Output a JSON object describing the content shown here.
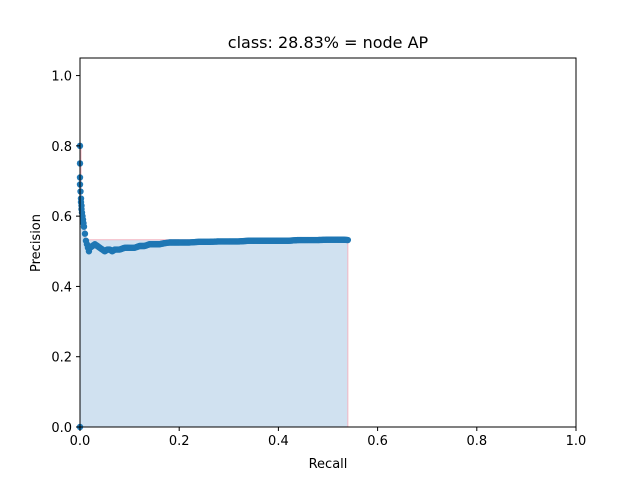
{
  "chart_data": {
    "type": "scatter",
    "title": "class: 28.83% = node AP",
    "xlabel": "Recall",
    "ylabel": "Precision",
    "xlim": [
      0,
      1
    ],
    "ylim": [
      0,
      1.05
    ],
    "xticks": [
      0.0,
      0.2,
      0.4,
      0.6,
      0.8,
      1.0
    ],
    "xtick_labels": [
      "0.0",
      "0.2",
      "0.4",
      "0.6",
      "0.8",
      "1.0"
    ],
    "yticks": [
      0.0,
      0.2,
      0.4,
      0.6,
      0.8,
      1.0
    ],
    "ytick_labels": [
      "0.0",
      "0.2",
      "0.4",
      "0.6",
      "0.8",
      "1.0"
    ],
    "grid": false,
    "legend": false,
    "colors": {
      "points": "#1f77b4",
      "fill": "#d0e1f0",
      "envelope": "#f4b6c2",
      "axes": "#000000"
    },
    "series": [
      {
        "x": [
          0.0,
          0.0,
          0.0,
          0.0,
          0.0,
          0.001,
          0.002,
          0.002,
          0.003,
          0.003,
          0.004,
          0.005,
          0.006,
          0.007,
          0.008,
          0.01,
          0.012,
          0.014,
          0.016,
          0.018,
          0.02,
          0.025,
          0.03,
          0.035,
          0.04,
          0.045,
          0.05,
          0.055,
          0.06,
          0.065,
          0.07,
          0.08,
          0.09,
          0.1,
          0.11,
          0.12,
          0.13,
          0.14,
          0.15,
          0.16,
          0.17,
          0.18,
          0.19,
          0.2,
          0.22,
          0.24,
          0.26,
          0.28,
          0.3,
          0.32,
          0.34,
          0.36,
          0.38,
          0.4,
          0.42,
          0.44,
          0.46,
          0.48,
          0.5,
          0.52,
          0.53,
          0.54
        ],
        "y": [
          0.0,
          0.8,
          0.75,
          0.71,
          0.69,
          0.67,
          0.65,
          0.64,
          0.63,
          0.62,
          0.61,
          0.6,
          0.59,
          0.58,
          0.57,
          0.55,
          0.53,
          0.52,
          0.51,
          0.5,
          0.51,
          0.515,
          0.52,
          0.515,
          0.51,
          0.505,
          0.5,
          0.505,
          0.505,
          0.5,
          0.505,
          0.505,
          0.51,
          0.51,
          0.51,
          0.515,
          0.515,
          0.52,
          0.52,
          0.52,
          0.523,
          0.525,
          0.525,
          0.525,
          0.525,
          0.527,
          0.527,
          0.528,
          0.528,
          0.528,
          0.53,
          0.53,
          0.53,
          0.53,
          0.53,
          0.532,
          0.532,
          0.532,
          0.533,
          0.533,
          0.533,
          0.532
        ]
      }
    ],
    "envelope": {
      "x": [
        0.0,
        0.0,
        0.002,
        0.002,
        0.005,
        0.005,
        0.01,
        0.01,
        0.54,
        0.54
      ],
      "y": [
        0.0,
        0.8,
        0.8,
        0.65,
        0.65,
        0.6,
        0.6,
        0.533,
        0.533,
        0.0
      ]
    }
  }
}
